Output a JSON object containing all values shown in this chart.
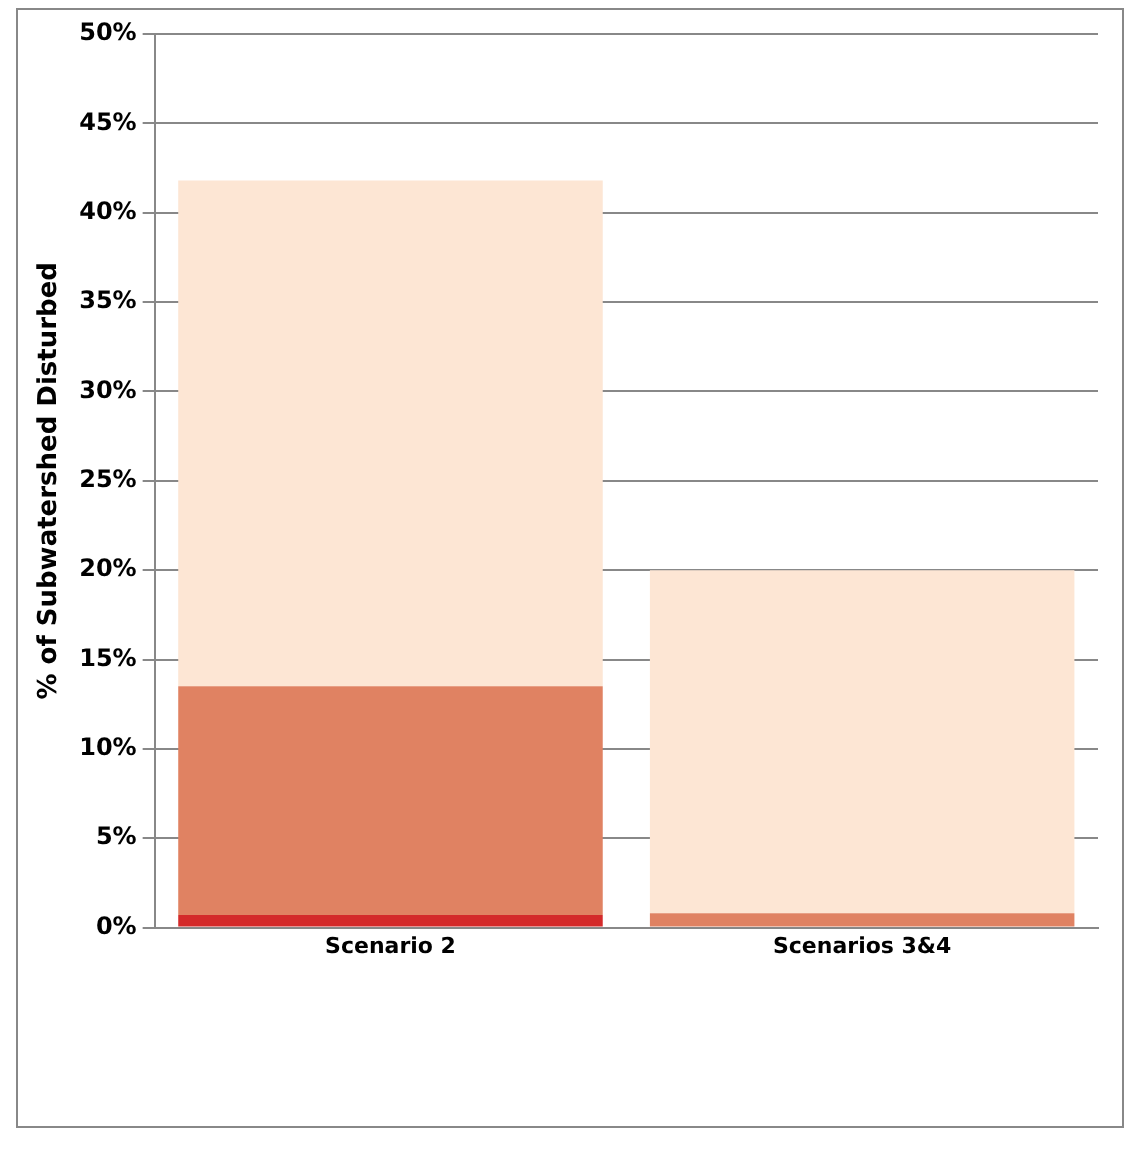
{
  "chart_data": {
    "type": "bar",
    "ylabel": "% of Subwatershed Disturbed",
    "categories": [
      "Scenario 2",
      "Scenarios 3&4"
    ],
    "stacked": true,
    "series": [
      {
        "color": "#d42a2a",
        "values": [
          0.7,
          0
        ]
      },
      {
        "color": "#e08262",
        "values": [
          12.8,
          0.8
        ]
      },
      {
        "color": "#fde6d4",
        "values": [
          28.3,
          19.2
        ]
      }
    ],
    "ylim": [
      0,
      50
    ],
    "yticks": [
      {
        "value": 0,
        "label": "0%"
      },
      {
        "value": 5,
        "label": "5%"
      },
      {
        "value": 10,
        "label": "10%"
      },
      {
        "value": 15,
        "label": "15%"
      },
      {
        "value": 20,
        "label": "20%"
      },
      {
        "value": 25,
        "label": "25%"
      },
      {
        "value": 30,
        "label": "30%"
      },
      {
        "value": 35,
        "label": "35%"
      },
      {
        "value": 40,
        "label": "40%"
      },
      {
        "value": 45,
        "label": "45%"
      },
      {
        "value": 50,
        "label": "50%"
      }
    ],
    "grid": "y",
    "legend": false
  }
}
